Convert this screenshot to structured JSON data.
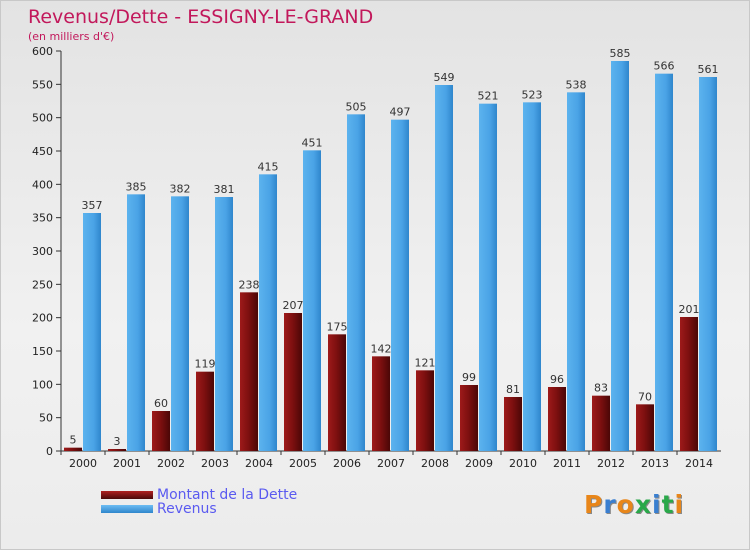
{
  "title": "Revenus/Dette - ESSIGNY-LE-GRAND",
  "unit_label": "(en milliers d'€)",
  "logo": "Proxiti",
  "colors": {
    "debt": "#7b0f0f",
    "revenue": "#4aa3e6",
    "title": "#c2185b",
    "legend_text": "#5a5af0"
  },
  "chart_data": {
    "type": "bar",
    "categories": [
      "2000",
      "2001",
      "2002",
      "2003",
      "2004",
      "2005",
      "2006",
      "2007",
      "2008",
      "2009",
      "2010",
      "2011",
      "2012",
      "2013",
      "2014"
    ],
    "series": [
      {
        "name": "Montant de la Dette",
        "values": [
          5,
          3,
          60,
          119,
          238,
          207,
          175,
          142,
          121,
          99,
          81,
          96,
          83,
          70,
          201
        ]
      },
      {
        "name": "Revenus",
        "values": [
          357,
          385,
          382,
          381,
          415,
          451,
          505,
          497,
          549,
          521,
          523,
          538,
          585,
          566,
          561
        ]
      }
    ],
    "ylim": [
      0,
      600
    ],
    "yticks": [
      0,
      50,
      100,
      150,
      200,
      250,
      300,
      350,
      400,
      450,
      500,
      550,
      600
    ],
    "grid": false,
    "legend_position": "bottom-left"
  }
}
